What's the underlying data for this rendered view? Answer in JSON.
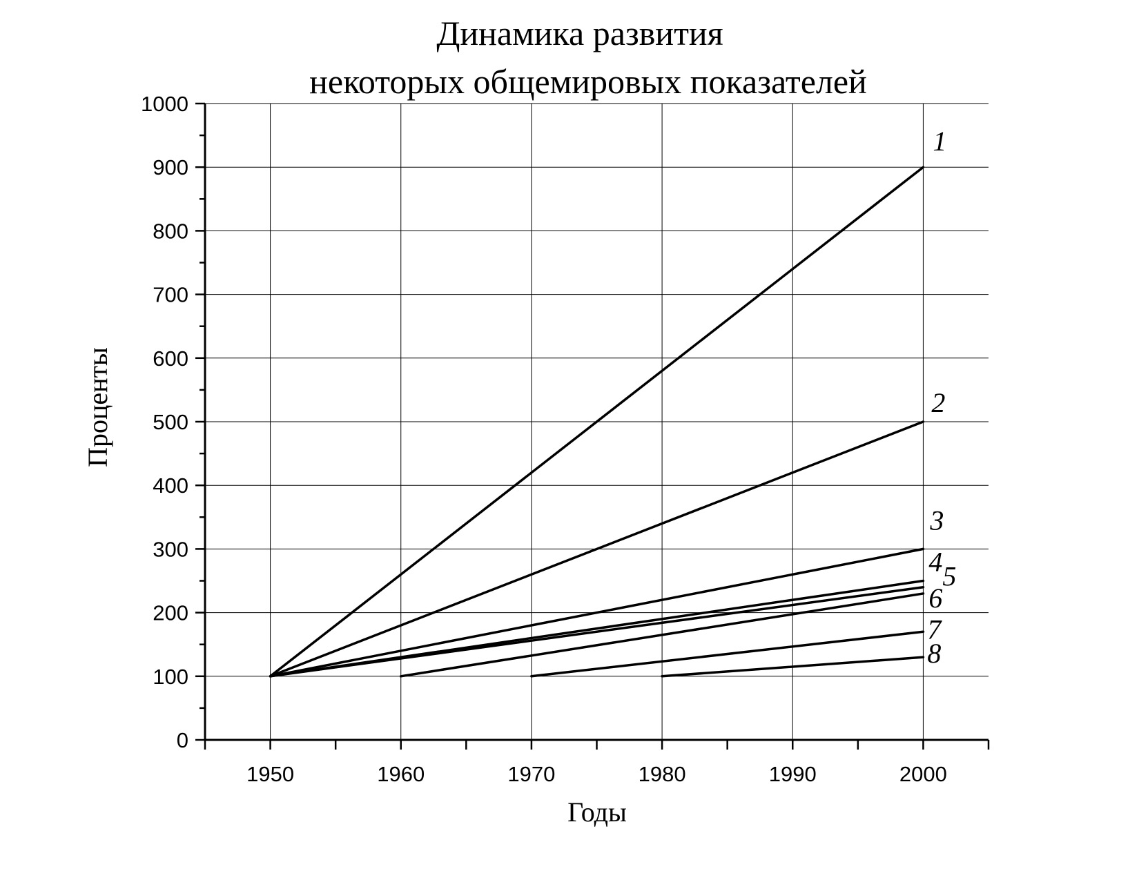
{
  "chart_data": {
    "type": "line",
    "title": [
      "Динамика развития",
      "некоторых общемировых показателей"
    ],
    "xlabel": "Годы",
    "ylabel": "Проценты",
    "xlim": [
      1945,
      2005
    ],
    "ylim": [
      0,
      1000
    ],
    "grid": true,
    "xticks": [
      1950,
      1960,
      1970,
      1980,
      1990,
      2000
    ],
    "xticks_minor": [
      1945,
      1955,
      1965,
      1975,
      1985,
      1995,
      2005
    ],
    "yticks": [
      0,
      100,
      200,
      300,
      400,
      500,
      600,
      700,
      800,
      900,
      1000
    ],
    "xtick_labels": [
      "1950",
      "1960",
      "1970",
      "1980",
      "1990",
      "2000"
    ],
    "ytick_labels": [
      "0",
      "100",
      "200",
      "300",
      "400",
      "500",
      "600",
      "700",
      "800",
      "900",
      "1000"
    ],
    "series": [
      {
        "label": "1",
        "x": [
          1950,
          2000
        ],
        "y": [
          100,
          900
        ]
      },
      {
        "label": "2",
        "x": [
          1950,
          2000
        ],
        "y": [
          100,
          500
        ]
      },
      {
        "label": "3",
        "x": [
          1950,
          2000
        ],
        "y": [
          100,
          300
        ]
      },
      {
        "label": "4",
        "x": [
          1950,
          2000
        ],
        "y": [
          100,
          250
        ]
      },
      {
        "label": "5",
        "x": [
          1950,
          2000
        ],
        "y": [
          100,
          240
        ]
      },
      {
        "label": "6",
        "x": [
          1960,
          2000
        ],
        "y": [
          100,
          230
        ]
      },
      {
        "label": "7",
        "x": [
          1970,
          2000
        ],
        "y": [
          100,
          170
        ]
      },
      {
        "label": "8",
        "x": [
          1980,
          2000
        ],
        "y": [
          100,
          130
        ]
      }
    ]
  }
}
